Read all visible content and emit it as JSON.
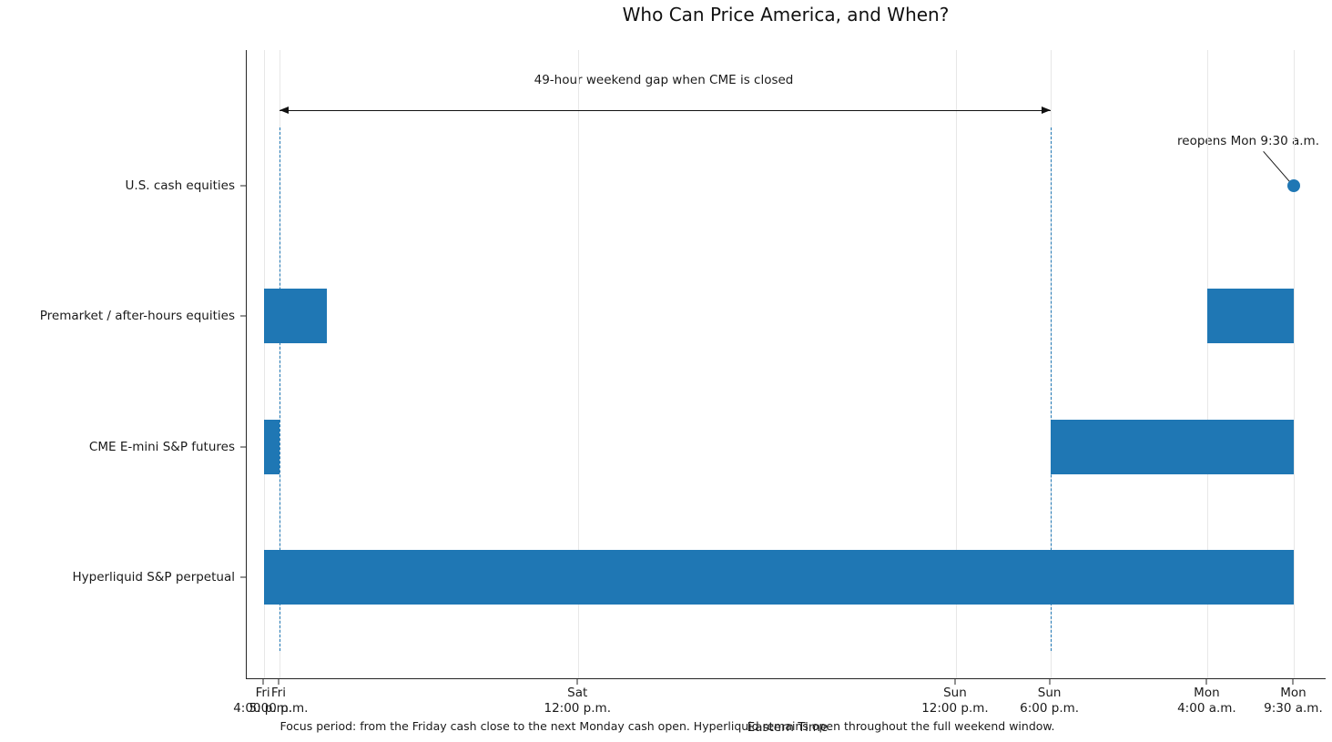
{
  "chart_data": {
    "type": "bar",
    "subtype": "horizontal-interval-timeline (market hours gantt)",
    "title": "Who Can Price America, and When?",
    "xlabel": "Eastern Time",
    "x_unit": "hours since Fri 4:00 p.m. ET",
    "xlim": [
      -1.08,
      67.5
    ],
    "grid": "light vertical gridlines at each x tick",
    "categories": [
      "U.S. cash equities",
      "Premarket / after-hours equities",
      "CME E-mini S&P futures",
      "Hyperliquid S&P perpetual"
    ],
    "x_ticks": [
      {
        "hour": 0,
        "line1": "Fri",
        "line2": "4:00 p.m."
      },
      {
        "hour": 1,
        "line1": "Fri",
        "line2": "5:00 p.m."
      },
      {
        "hour": 20,
        "line1": "Sat",
        "line2": "12:00 p.m."
      },
      {
        "hour": 44,
        "line1": "Sun",
        "line2": "12:00 p.m."
      },
      {
        "hour": 50,
        "line1": "Sun",
        "line2": "6:00 p.m."
      },
      {
        "hour": 60,
        "line1": "Mon",
        "line2": "4:00 a.m."
      },
      {
        "hour": 65.5,
        "line1": "Mon",
        "line2": "9:30 a.m."
      }
    ],
    "series": [
      {
        "name": "U.S. cash equities",
        "intervals": [],
        "point_marker_hour": 65.5
      },
      {
        "name": "Premarket / after-hours equities",
        "intervals": [
          [
            0,
            4
          ],
          [
            60,
            65.5
          ]
        ]
      },
      {
        "name": "CME E-mini S&P futures",
        "intervals": [
          [
            0,
            1
          ],
          [
            50,
            65.5
          ]
        ]
      },
      {
        "name": "Hyperliquid S&P perpetual",
        "intervals": [
          [
            0,
            65.5
          ]
        ]
      }
    ],
    "reference_lines_hours": [
      1,
      50
    ],
    "annotations": [
      {
        "id": "gap",
        "text": "49-hour weekend gap when CME is closed",
        "arrow_from_hour": 1,
        "arrow_to_hour": 50
      },
      {
        "id": "reopen",
        "text": "reopens Mon 9:30 a.m.",
        "points_to": {
          "hour": 65.5,
          "category": "U.S. cash equities"
        }
      }
    ],
    "colors": {
      "bar": "#1f77b4",
      "reference_line": "#1f77b4",
      "marker": "#1f77b4",
      "grid": "#e7e7e7",
      "axis": "#262626",
      "text": "#1a1a1a"
    },
    "footnote": "Focus period: from the Friday cash close to the next Monday cash open. Hyperliquid remains open throughout the full weekend window."
  }
}
